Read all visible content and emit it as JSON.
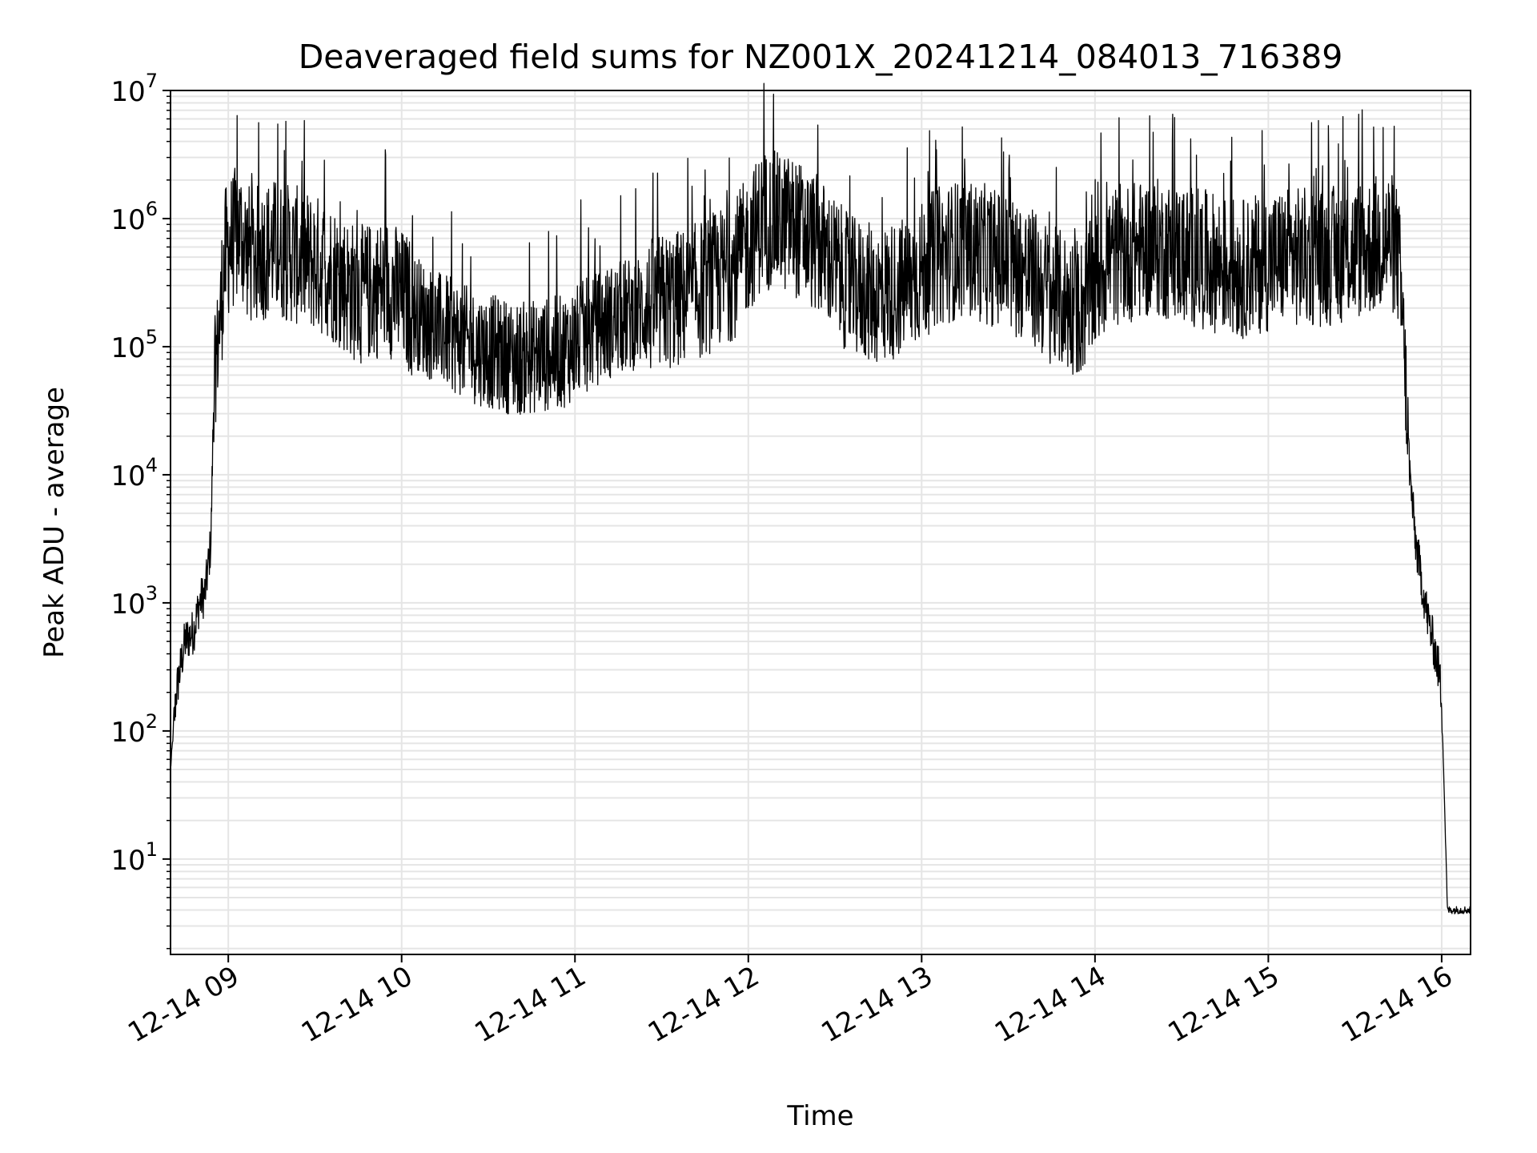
{
  "chart_data": {
    "type": "line",
    "title": "Deaveraged field sums for NZ001X_20241214_084013_716389",
    "xlabel": "Time",
    "ylabel": "Peak ADU - average",
    "yscale": "log",
    "ylim": [
      1.8,
      10000000
    ],
    "xlim": [
      "2024-12-14 08:40",
      "2024-12-14 16:10"
    ],
    "grid": true,
    "line_color": "#000000",
    "grid_color": "#e5e5e5",
    "x_ticks": [
      "12-14 09",
      "12-14 10",
      "12-14 11",
      "12-14 12",
      "12-14 13",
      "12-14 14",
      "12-14 15",
      "12-14 16"
    ],
    "y_ticks": [
      {
        "base": "10",
        "exp": "1"
      },
      {
        "base": "10",
        "exp": "2"
      },
      {
        "base": "10",
        "exp": "3"
      },
      {
        "base": "10",
        "exp": "4"
      },
      {
        "base": "10",
        "exp": "5"
      },
      {
        "base": "10",
        "exp": "6"
      },
      {
        "base": "10",
        "exp": "7"
      }
    ],
    "series": [
      {
        "x": [
          "2024-12-14 08:40",
          "2024-12-14 08:42",
          "2024-12-14 08:45",
          "2024-12-14 08:48",
          "2024-12-14 08:50",
          "2024-12-14 08:52",
          "2024-12-14 08:54",
          "2024-12-14 08:55",
          "2024-12-14 08:57",
          "2024-12-14 08:58",
          "2024-12-14 08:59",
          "2024-12-14 09:00",
          "2024-12-14 09:02",
          "2024-12-14 09:04",
          "2024-12-14 09:06",
          "2024-12-14 09:08",
          "2024-12-14 09:15",
          "2024-12-14 09:25",
          "2024-12-14 09:35",
          "2024-12-14 09:45",
          "2024-12-14 09:55",
          "2024-12-14 10:10",
          "2024-12-14 10:25",
          "2024-12-14 10:40",
          "2024-12-14 10:55",
          "2024-12-14 11:10",
          "2024-12-14 11:25",
          "2024-12-14 11:40",
          "2024-12-14 11:55",
          "2024-12-14 12:05",
          "2024-12-14 12:15",
          "2024-12-14 12:25",
          "2024-12-14 12:35",
          "2024-12-14 12:45",
          "2024-12-14 12:55",
          "2024-12-14 13:05",
          "2024-12-14 13:15",
          "2024-12-14 13:25",
          "2024-12-14 13:35",
          "2024-12-14 13:45",
          "2024-12-14 13:55",
          "2024-12-14 14:05",
          "2024-12-14 14:20",
          "2024-12-14 14:35",
          "2024-12-14 14:50",
          "2024-12-14 15:05",
          "2024-12-14 15:20",
          "2024-12-14 15:35",
          "2024-12-14 15:42",
          "2024-12-14 15:45",
          "2024-12-14 15:47",
          "2024-12-14 15:49",
          "2024-12-14 15:51",
          "2024-12-14 15:53",
          "2024-12-14 15:55",
          "2024-12-14 15:57",
          "2024-12-14 15:59",
          "2024-12-14 16:00",
          "2024-12-14 16:02",
          "2024-12-14 16:05",
          "2024-12-14 16:10"
        ],
        "values": [
          50,
          200,
          500,
          600,
          1000,
          1200,
          3000,
          50000,
          150000,
          300000,
          500000,
          600000,
          700000,
          800000,
          600000,
          500000,
          600000,
          500000,
          400000,
          250000,
          300000,
          150000,
          100000,
          80000,
          90000,
          150000,
          200000,
          250000,
          400000,
          1000000,
          900000,
          600000,
          300000,
          250000,
          300000,
          500000,
          600000,
          500000,
          400000,
          250000,
          200000,
          500000,
          600000,
          500000,
          400000,
          500000,
          500000,
          600000,
          700000,
          500000,
          100000,
          10000,
          3000,
          1500,
          800,
          500,
          300,
          180,
          4,
          4,
          4
        ]
      }
    ]
  }
}
